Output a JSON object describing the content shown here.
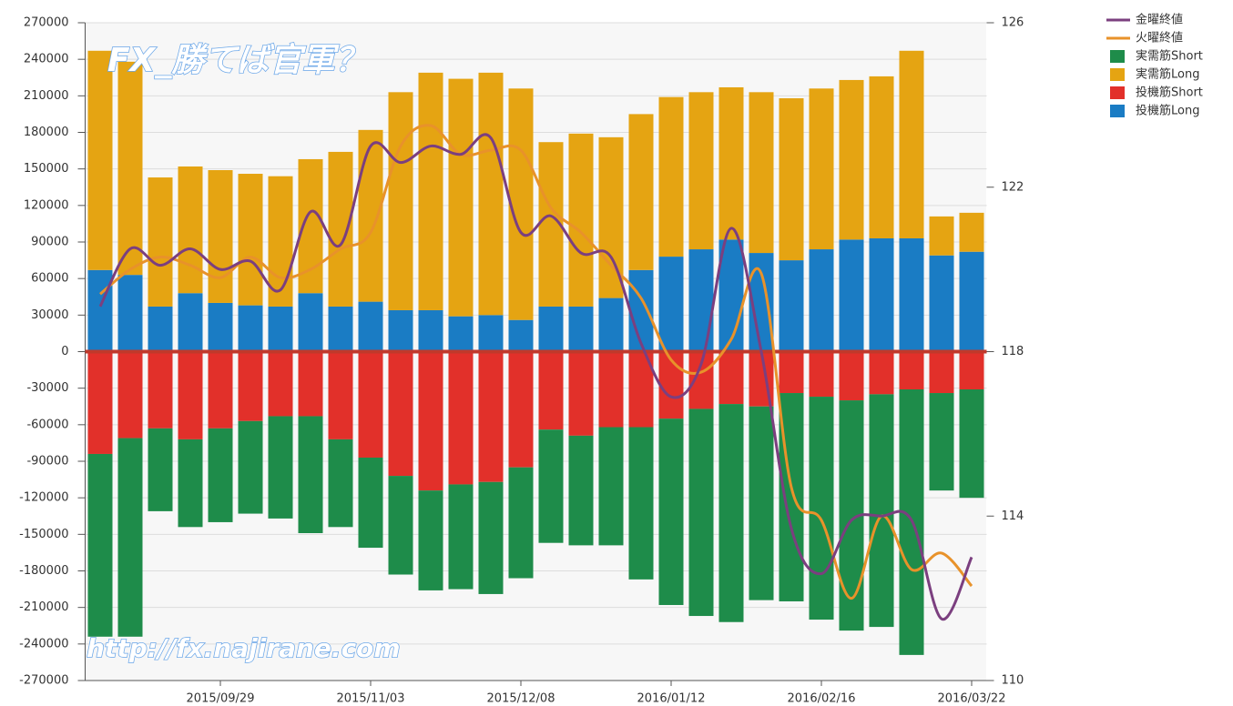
{
  "chart_data": {
    "type": "bar",
    "title": "FX_勝てば官軍？",
    "annotations": [
      "http://fx.najirane.com"
    ],
    "categories": [
      null,
      null,
      null,
      null,
      "2015/09/29",
      null,
      null,
      null,
      null,
      "2015/11/03",
      null,
      null,
      null,
      null,
      "2015/12/08",
      null,
      null,
      null,
      null,
      "2016/01/12",
      null,
      null,
      null,
      null,
      "2016/02/16",
      null,
      null,
      null,
      null,
      "2016/03/22"
    ],
    "series": [
      {
        "name": "金曜終値",
        "type": "line",
        "axis": "y2",
        "color": "#7b3f7f",
        "values": [
          119.1,
          120.5,
          120.1,
          120.5,
          120.0,
          120.2,
          119.5,
          121.4,
          120.6,
          123.0,
          122.6,
          123.0,
          122.8,
          123.2,
          120.9,
          121.3,
          120.4,
          120.3,
          118.2,
          116.9,
          117.7,
          121.0,
          118.0,
          113.7,
          112.6,
          113.9,
          114.0,
          113.9,
          111.5,
          113.0
        ]
      },
      {
        "name": "火曜終値",
        "type": "line",
        "axis": "y2",
        "color": "#e8922a",
        "values": [
          119.4,
          120.0,
          120.3,
          120.1,
          119.8,
          120.3,
          119.8,
          120.0,
          120.5,
          120.9,
          123.0,
          123.5,
          122.8,
          122.9,
          122.9,
          121.5,
          120.9,
          120.1,
          119.3,
          117.8,
          117.5,
          118.3,
          119.9,
          114.7,
          113.9,
          112.0,
          114.0,
          112.7,
          113.1,
          112.3
        ]
      },
      {
        "name": "実需筋Short",
        "type": "bar",
        "color": "#1e8c4a",
        "values": [
          -150000,
          -163000,
          -68000,
          -72000,
          -77000,
          -76000,
          -84000,
          -96000,
          -72000,
          -74000,
          -81000,
          -82000,
          -86000,
          -92000,
          -91000,
          -93000,
          -90000,
          -97000,
          -125000,
          -153000,
          -170000,
          -179000,
          -159000,
          -171000,
          -183000,
          -189000,
          -191000,
          -218000,
          -80000,
          -89000
        ]
      },
      {
        "name": "実需筋Long",
        "type": "bar",
        "color": "#e5a412",
        "values": [
          180000,
          175000,
          106000,
          104000,
          109000,
          108000,
          107000,
          110000,
          127000,
          141000,
          179000,
          195000,
          195000,
          199000,
          190000,
          135000,
          142000,
          132000,
          128000,
          131000,
          129000,
          125000,
          132000,
          133000,
          132000,
          131000,
          133000,
          154000,
          32000,
          32000
        ]
      },
      {
        "name": "投機筋Short",
        "type": "bar",
        "color": "#e2302a",
        "values": [
          -84000,
          -71000,
          -63000,
          -72000,
          -63000,
          -57000,
          -53000,
          -53000,
          -72000,
          -87000,
          -102000,
          -114000,
          -109000,
          -107000,
          -95000,
          -64000,
          -69000,
          -62000,
          -62000,
          -55000,
          -47000,
          -43000,
          -45000,
          -34000,
          -37000,
          -40000,
          -35000,
          -31000,
          -34000,
          -31000
        ]
      },
      {
        "name": "投機筋Long",
        "type": "bar",
        "color": "#1a7cc4",
        "values": [
          67000,
          63000,
          37000,
          48000,
          40000,
          38000,
          37000,
          48000,
          37000,
          41000,
          34000,
          34000,
          29000,
          30000,
          26000,
          37000,
          37000,
          44000,
          67000,
          78000,
          84000,
          92000,
          81000,
          75000,
          84000,
          92000,
          93000,
          93000,
          79000,
          82000
        ]
      }
    ],
    "ylim": [
      -270000,
      270000
    ],
    "yticks": [
      -270000,
      -240000,
      -210000,
      -180000,
      -150000,
      -120000,
      -90000,
      -60000,
      -30000,
      0,
      30000,
      60000,
      90000,
      120000,
      150000,
      180000,
      210000,
      240000,
      270000
    ],
    "y2lim": [
      110,
      126
    ],
    "y2ticks": [
      110,
      114,
      118,
      122,
      126
    ],
    "grid": true,
    "legend": "right"
  }
}
